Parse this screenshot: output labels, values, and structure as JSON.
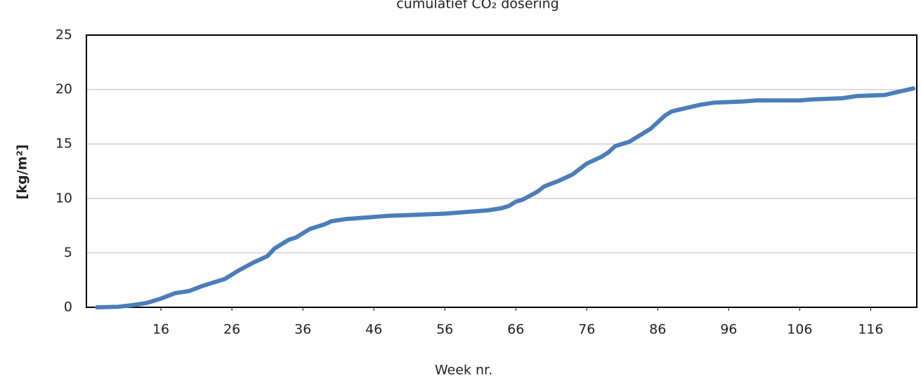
{
  "chart_data": {
    "type": "line",
    "title": "cumulatief CO₂ dosering",
    "x_label": "Week nr.",
    "y_label": "[kg/m²]",
    "x": [
      7,
      10,
      12,
      14,
      16,
      18,
      20,
      22,
      24,
      25,
      27,
      29,
      31,
      32,
      34,
      35,
      37,
      39,
      40,
      42,
      44,
      46,
      48,
      52,
      56,
      60,
      62,
      64,
      65,
      66,
      67,
      69,
      70,
      72,
      74,
      76,
      78,
      79,
      80,
      82,
      84,
      85,
      86,
      87,
      88,
      90,
      92,
      94,
      98,
      100,
      106,
      108,
      112,
      114,
      118,
      120,
      122
    ],
    "series": [
      {
        "name": "CO2",
        "color": "#4a7ebb",
        "values": [
          0,
          0.05,
          0.2,
          0.4,
          0.8,
          1.3,
          1.5,
          2.0,
          2.4,
          2.6,
          3.4,
          4.1,
          4.7,
          5.4,
          6.2,
          6.4,
          7.2,
          7.6,
          7.9,
          8.1,
          8.2,
          8.3,
          8.4,
          8.5,
          8.6,
          8.8,
          8.9,
          9.1,
          9.3,
          9.7,
          9.9,
          10.6,
          11.1,
          11.6,
          12.2,
          13.2,
          13.8,
          14.2,
          14.8,
          15.2,
          16.0,
          16.4,
          17.0,
          17.6,
          18.0,
          18.3,
          18.6,
          18.8,
          18.9,
          19.0,
          19.0,
          19.1,
          19.2,
          19.4,
          19.5,
          19.8,
          20.1
        ]
      }
    ],
    "xlim": [
      5.5,
      122.5
    ],
    "xticks": [
      16,
      26,
      36,
      46,
      56,
      66,
      76,
      86,
      96,
      106,
      116
    ],
    "ylim": [
      0,
      25
    ],
    "yticks": [
      0,
      5,
      10,
      15,
      20,
      25
    ],
    "grid": true
  }
}
